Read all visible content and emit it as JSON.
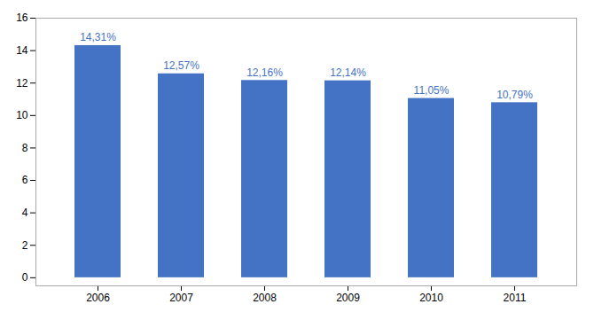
{
  "chart_data": {
    "type": "bar",
    "categories": [
      "2006",
      "2007",
      "2008",
      "2009",
      "2010",
      "2011"
    ],
    "values": [
      14.31,
      12.57,
      12.16,
      12.14,
      11.05,
      10.79
    ],
    "value_labels": [
      "14,31%",
      "12,57%",
      "12,16%",
      "12,14%",
      "11,05%",
      "10,79%"
    ],
    "data_labels": true,
    "color": "#4472C4",
    "ylim": [
      -0.5,
      16
    ],
    "yticks": [
      0,
      2,
      4,
      6,
      8,
      10,
      12,
      14,
      16
    ],
    "grid": false
  }
}
